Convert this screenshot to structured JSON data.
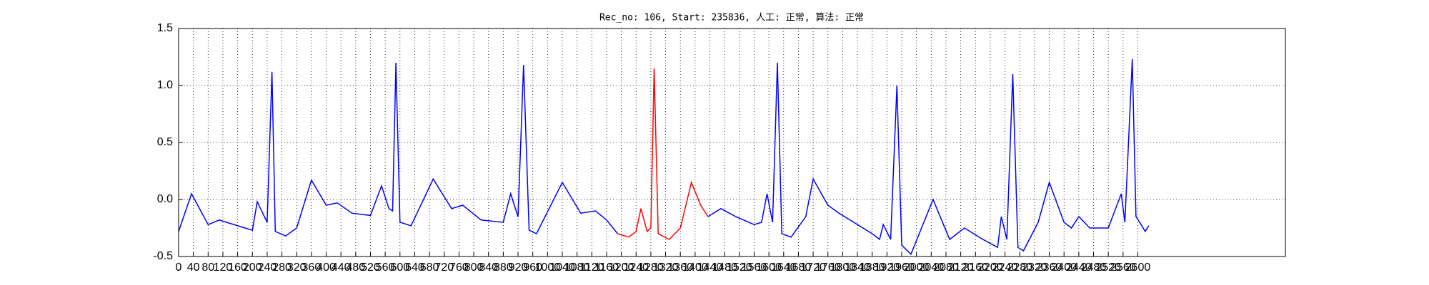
{
  "chart_data": {
    "type": "line",
    "title": "Rec_no: 106, Start: 235836, 人工: 正常, 算法: 正常",
    "xlim": [
      0,
      3000
    ],
    "xticks": [
      0,
      40,
      80,
      120,
      160,
      200,
      240,
      280,
      320,
      360,
      400,
      440,
      480,
      520,
      560,
      600,
      640,
      680,
      720,
      760,
      800,
      840,
      880,
      920,
      960,
      1000,
      1040,
      1080,
      1120,
      1160,
      1200,
      1240,
      1280,
      1320,
      1360,
      1400,
      1440,
      1480,
      1520,
      1560,
      1600,
      1640,
      1680,
      1720,
      1760,
      1800,
      1840,
      1880,
      1920,
      1960,
      2000,
      2040,
      2080,
      2120,
      2160,
      2200,
      2240,
      2280,
      2320,
      2360,
      2400,
      2440,
      2480,
      2520,
      2560,
      2600
    ],
    "ylim": [
      -0.5,
      1.5
    ],
    "yticks": [
      -0.5,
      {
        "value": 0,
        "label": "0.0"
      },
      0.5,
      {
        "value": 1,
        "label": "1.0"
      },
      1.5
    ],
    "grid": true,
    "series": [
      {
        "color": "#0000ff",
        "x": [
          0,
          35,
          80,
          110,
          180,
          200,
          213,
          240,
          253,
          262,
          290,
          320,
          360,
          400,
          430,
          470,
          520,
          550,
          570,
          580,
          589,
          600,
          630,
          690,
          740,
          770,
          820,
          880,
          900,
          920,
          935,
          950,
          970,
          1040,
          1090,
          1130,
          1160,
          1190,
          null,
          1435,
          1470,
          1510,
          1560,
          1580,
          1595,
          1610,
          1623,
          1635,
          1660,
          1700,
          1720,
          1760,
          1790,
          1830,
          1880,
          1900,
          1910,
          1930,
          1947,
          1960,
          1985,
          2045,
          2090,
          2130,
          2180,
          2220,
          2230,
          2245,
          2261,
          2275,
          2290,
          2330,
          2360,
          2400,
          2420,
          2440,
          2470,
          2520,
          2555,
          2565,
          2585,
          2595,
          2605,
          2620,
          2630
        ],
        "values": [
          -0.28,
          0.05,
          -0.22,
          -0.18,
          -0.25,
          -0.27,
          -0.02,
          -0.2,
          1.12,
          -0.28,
          -0.32,
          -0.25,
          0.17,
          -0.05,
          -0.03,
          -0.12,
          -0.14,
          0.12,
          -0.08,
          -0.1,
          1.2,
          -0.2,
          -0.23,
          0.18,
          -0.08,
          -0.05,
          -0.18,
          -0.2,
          0.05,
          -0.15,
          1.18,
          -0.27,
          -0.3,
          0.15,
          -0.12,
          -0.1,
          -0.18,
          -0.3,
          null,
          -0.15,
          -0.08,
          -0.15,
          -0.22,
          -0.2,
          0.05,
          -0.2,
          1.2,
          -0.3,
          -0.33,
          -0.15,
          0.18,
          -0.05,
          -0.12,
          -0.2,
          -0.3,
          -0.35,
          -0.22,
          -0.35,
          1.0,
          -0.4,
          -0.48,
          0.0,
          -0.35,
          -0.25,
          -0.35,
          -0.42,
          -0.15,
          -0.35,
          1.1,
          -0.42,
          -0.45,
          -0.2,
          0.15,
          -0.2,
          -0.25,
          -0.15,
          -0.25,
          -0.25,
          0.05,
          -0.2,
          1.23,
          -0.15,
          -0.2,
          -0.28,
          -0.23
        ]
      },
      {
        "color": "#ff0000",
        "x": [
          1190,
          1220,
          1240,
          1253,
          1270,
          1280,
          1289,
          1300,
          1330,
          1360,
          1390,
          1415,
          1435
        ],
        "values": [
          -0.3,
          -0.33,
          -0.28,
          -0.08,
          -0.28,
          -0.25,
          1.15,
          -0.3,
          -0.35,
          -0.25,
          0.15,
          -0.05,
          -0.15
        ]
      }
    ]
  }
}
